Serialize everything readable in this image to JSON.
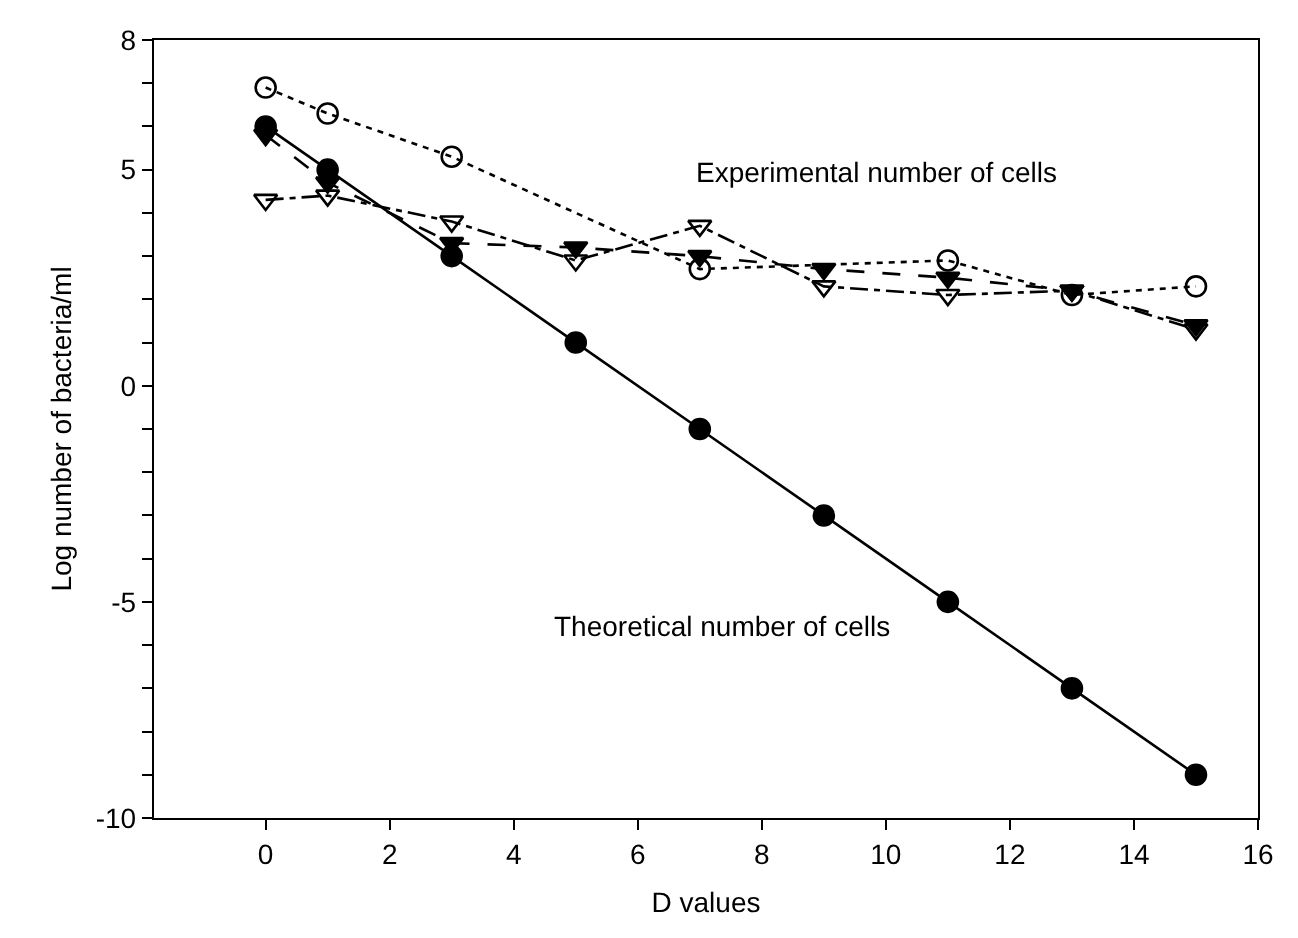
{
  "chart_data": {
    "type": "line",
    "xlabel": "D values",
    "ylabel": "Log number of bacteria/ml",
    "x": [
      0,
      1,
      3,
      5,
      7,
      9,
      11,
      13,
      15
    ],
    "series": [
      {
        "color": "#000000",
        "marker": "circle",
        "line_style": "solid",
        "values": [
          6,
          5,
          3,
          1,
          -1,
          -3,
          -5,
          -7,
          -9
        ]
      },
      {
        "color": "#000000",
        "marker": "circle",
        "line_style": "dotted",
        "values": [
          6.9,
          6.3,
          5.3,
          null,
          2.7,
          null,
          2.9,
          2.1,
          2.3
        ]
      },
      {
        "color": "#000000",
        "marker": "triangle",
        "line_style": "dashed",
        "values": [
          5.8,
          4.7,
          3.3,
          3.2,
          3.0,
          2.7,
          2.5,
          2.2,
          1.4
        ]
      },
      {
        "color": "#000000",
        "marker": "triangle",
        "line_style": "dashdot",
        "values": [
          4.3,
          4.4,
          3.8,
          2.9,
          3.7,
          2.3,
          2.1,
          2.2,
          1.3
        ]
      }
    ],
    "xlim": [
      -1.8,
      16
    ],
    "xticks": [
      0,
      2,
      4,
      6,
      8,
      10,
      12,
      14,
      16
    ],
    "ylim": [
      -10,
      8
    ],
    "yticks": [
      -10,
      {
        "value": -9,
        "label": null
      },
      {
        "value": -8,
        "label": null
      },
      {
        "value": -7,
        "label": null
      },
      {
        "value": -6,
        "label": null
      },
      -5,
      {
        "value": -4,
        "label": null
      },
      {
        "value": -3,
        "label": null
      },
      {
        "value": -2,
        "label": null
      },
      {
        "value": -1,
        "label": null
      },
      0,
      {
        "value": 1,
        "label": null
      },
      {
        "value": 2,
        "label": null
      },
      {
        "value": 3,
        "label": null
      },
      {
        "value": 4,
        "label": null
      },
      5,
      {
        "value": 6,
        "label": null
      },
      {
        "value": 7,
        "label": null
      },
      8
    ],
    "annotations": [
      "Experimental number of cells",
      "Theoretical number of cells"
    ],
    "grid": false
  }
}
